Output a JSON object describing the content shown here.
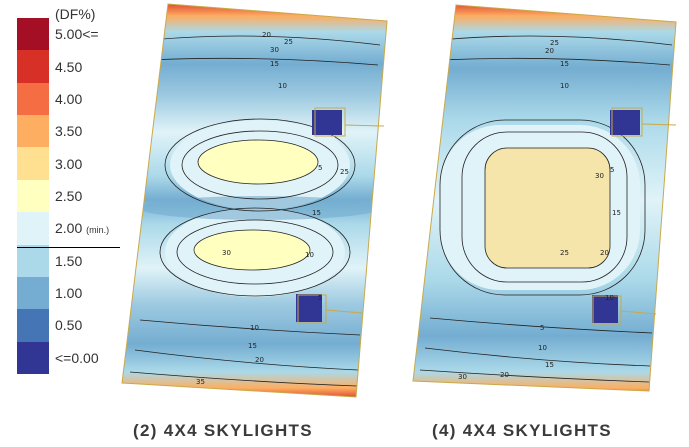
{
  "legend": {
    "title": "(DF%)",
    "levels": [
      {
        "label": "5.00<=",
        "color": "#a50f26"
      },
      {
        "label": "4.50",
        "color": "#d73027"
      },
      {
        "label": "4.00",
        "color": "#f46d43"
      },
      {
        "label": "3.50",
        "color": "#fdae61"
      },
      {
        "label": "3.00",
        "color": "#fee090"
      },
      {
        "label": "2.50",
        "color": "#ffffbf"
      },
      {
        "label": "2.00",
        "color": "#e0f3f8"
      },
      {
        "label": "1.50",
        "color": "#abd9e9"
      },
      {
        "label": "1.00",
        "color": "#74add1"
      },
      {
        "label": "0.50",
        "color": "#4575b4"
      },
      {
        "label": "<=0.00",
        "color": "#313695"
      }
    ],
    "min_note": "(min.)"
  },
  "panels": [
    {
      "caption": "(2) 4X4 SKYLIGHTS",
      "contour_labels": [
        "20",
        "25",
        "30",
        "15",
        "10",
        "5",
        "25",
        "30",
        "10",
        "15",
        "5",
        "10",
        "15",
        "20",
        "35"
      ]
    },
    {
      "caption": "(4) 4X4 SKYLIGHTS",
      "contour_labels": [
        "30",
        "25",
        "20",
        "15",
        "10",
        "5",
        "25",
        "20",
        "15",
        "10",
        "5",
        "10",
        "15",
        "20",
        "30"
      ]
    }
  ]
}
